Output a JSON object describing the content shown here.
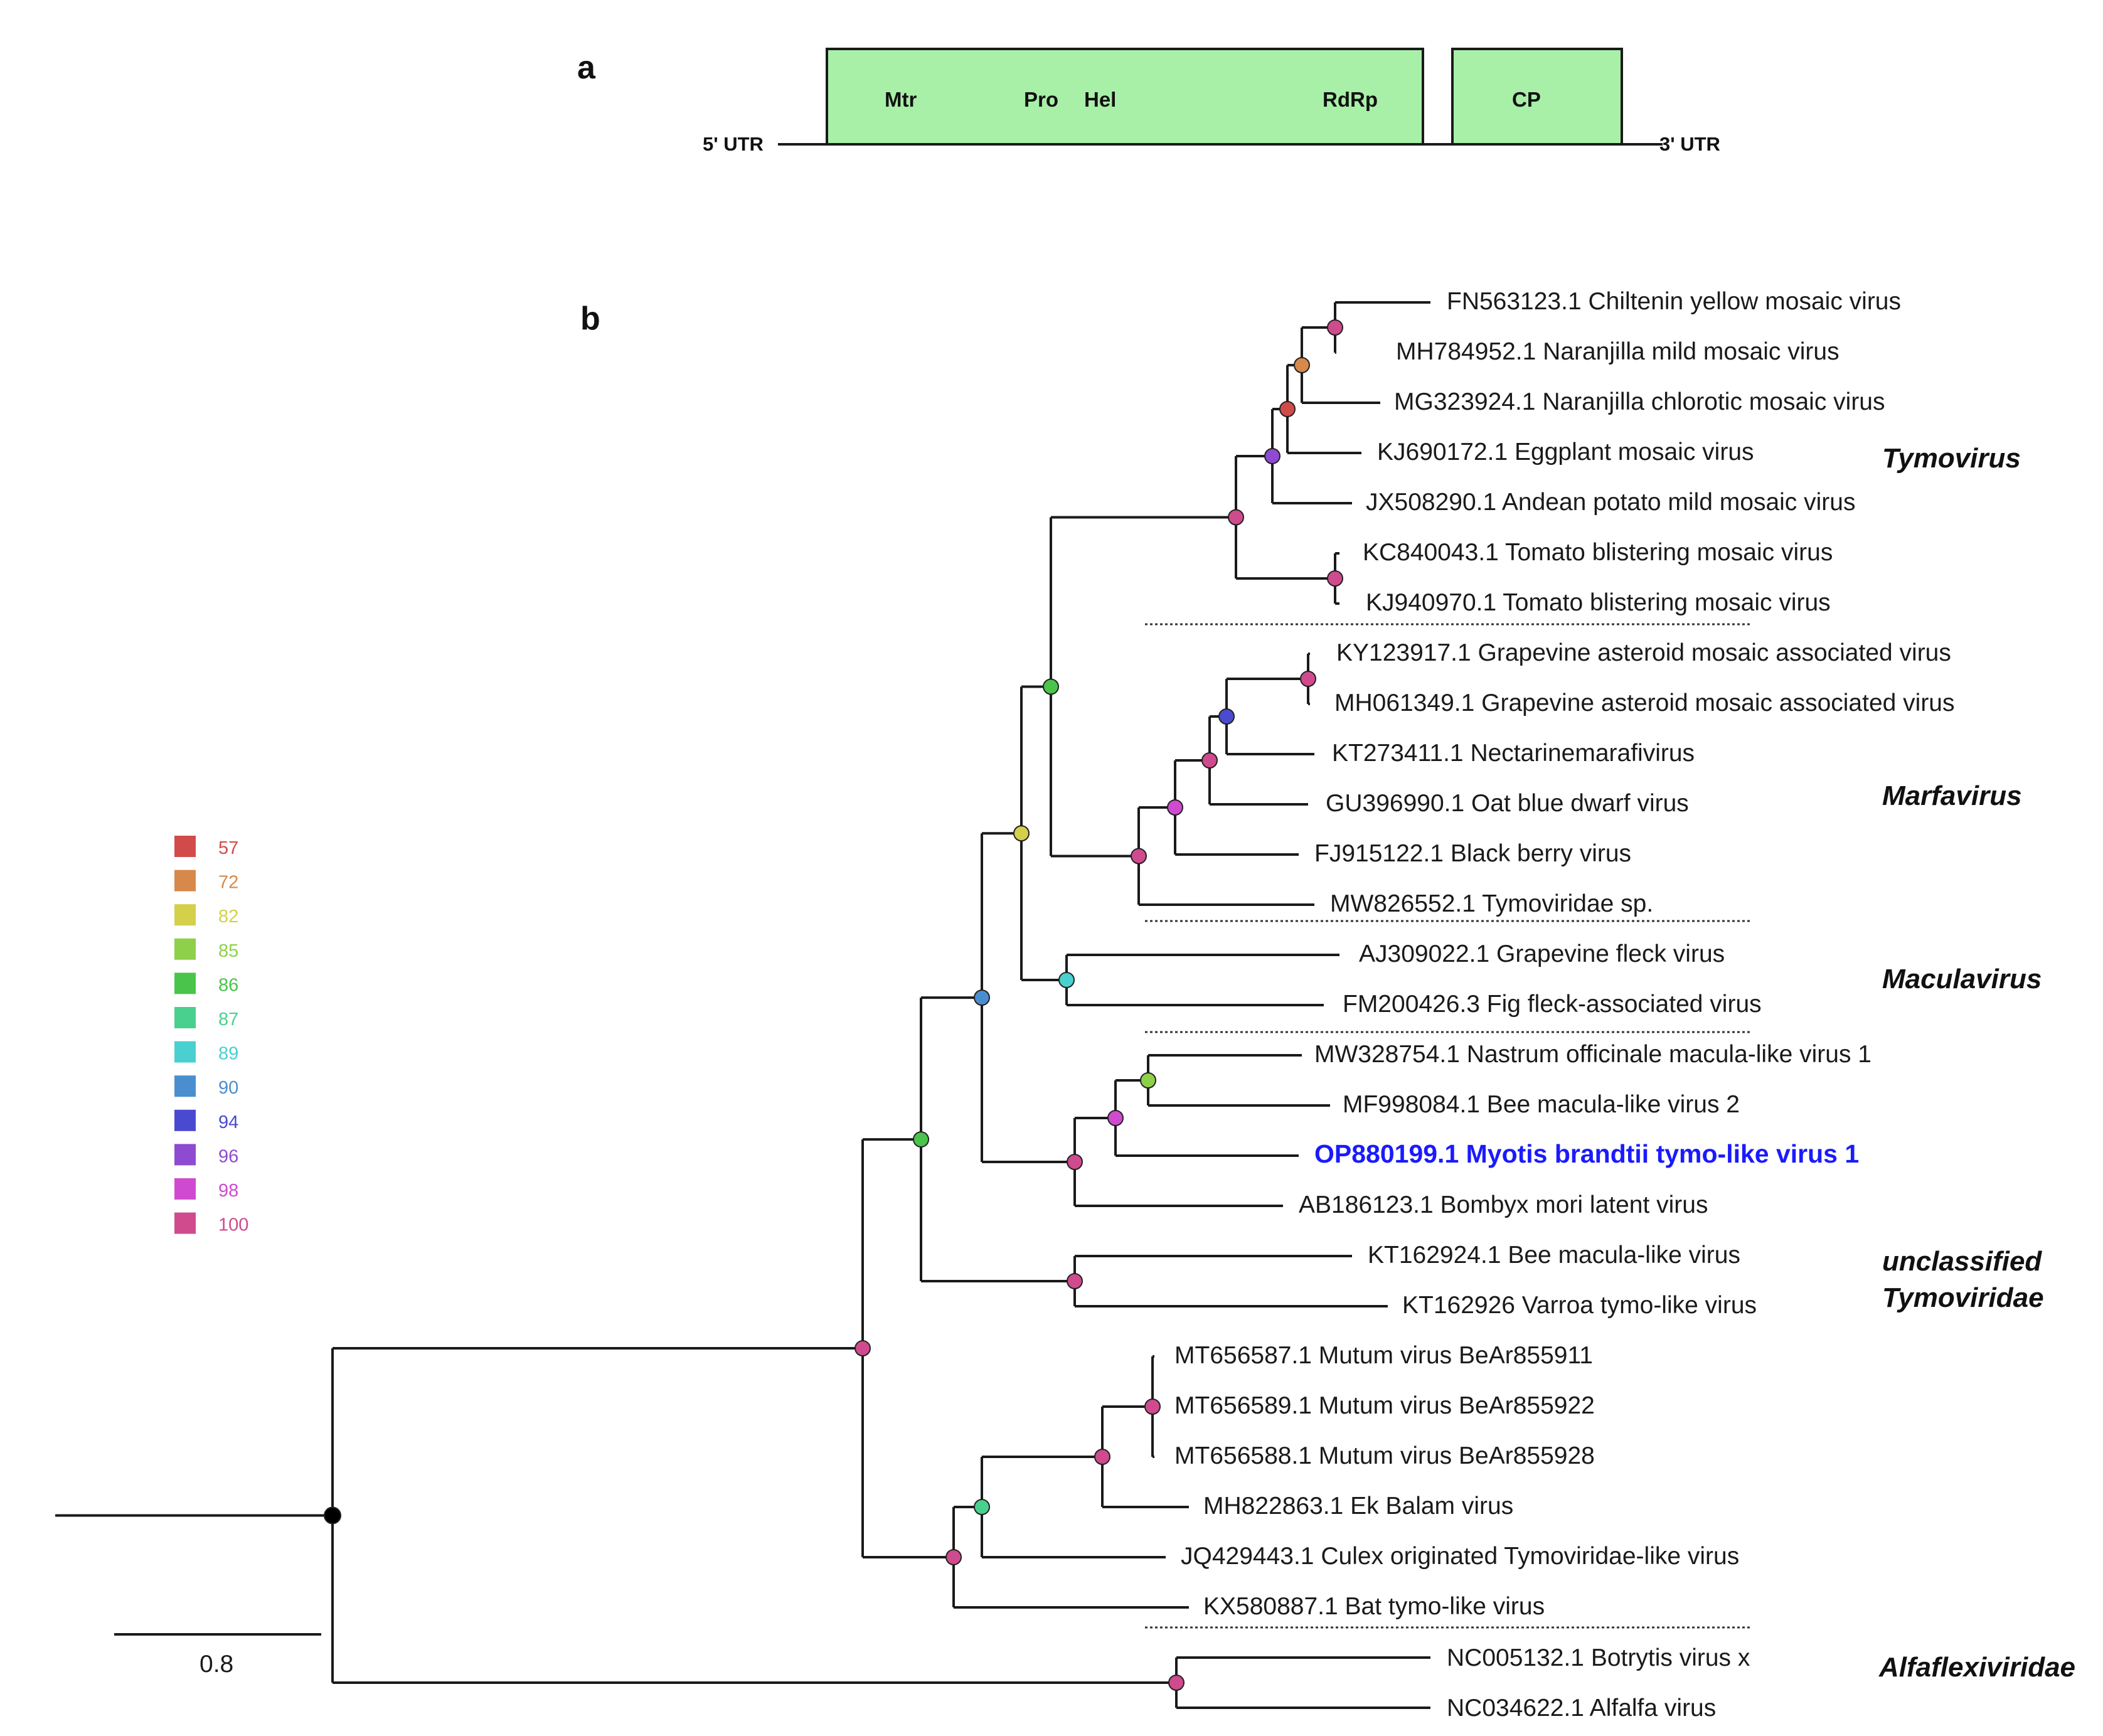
{
  "panel_a": {
    "label": "a",
    "utr5": "5' UTR",
    "utr3": "3' UTR",
    "domains": [
      "Mtr",
      "Pro",
      "Hel",
      "RdRp",
      "CP"
    ],
    "box_color": "#a8f0a8"
  },
  "panel_b": {
    "label": "b",
    "scale_label": "0.8",
    "leaves": [
      "FN563123.1 Chiltenin yellow mosaic virus",
      "MH784952.1 Naranjilla mild mosaic virus",
      "MG323924.1 Naranjilla chlorotic mosaic virus",
      "KJ690172.1 Eggplant mosaic virus",
      "JX508290.1 Andean potato mild mosaic virus",
      "KC840043.1 Tomato blistering mosaic virus",
      "KJ940970.1 Tomato blistering mosaic virus",
      "KY123917.1 Grapevine asteroid mosaic associated virus",
      "MH061349.1 Grapevine asteroid mosaic associated virus",
      "KT273411.1 Nectarinemarafivirus",
      "GU396990.1 Oat blue dwarf virus",
      "FJ915122.1 Black berry virus",
      "MW826552.1 Tymoviridae sp.",
      "AJ309022.1 Grapevine fleck virus",
      "FM200426.3 Fig fleck-associated virus",
      "MW328754.1 Nastrum officinale macula-like virus 1",
      "MF998084.1  Bee macula-like virus 2",
      "OP880199.1 Myotis brandtii tymo-like virus 1",
      "AB186123.1 Bombyx mori latent virus",
      "KT162924.1 Bee macula-like virus",
      "KT162926 Varroa tymo-like virus",
      "MT656587.1 Mutum virus BeAr855911",
      "MT656589.1 Mutum virus BeAr855922",
      "MT656588.1 Mutum virus BeAr855928",
      "MH822863.1 Ek Balam virus",
      "JQ429443.1 Culex originated Tymoviridae-like virus",
      "KX580887.1 Bat tymo-like virus",
      "NC005132.1 Botrytis virus x",
      "NC034622.1 Alfalfa virus"
    ],
    "highlight_color": "#1a1aff",
    "clades": {
      "tymovirus": "Tymovirus",
      "marfavirus": "Marfavirus",
      "maculavirus": "Maculavirus",
      "unclassified_1": "unclassified",
      "unclassified_2": "Tymoviridae",
      "alfaflexiviridae": "Alfaflexiviridae"
    },
    "legend": [
      {
        "value": "57",
        "color": "#d24b4b"
      },
      {
        "value": "72",
        "color": "#d6894a"
      },
      {
        "value": "82",
        "color": "#d4d04a"
      },
      {
        "value": "85",
        "color": "#8ed04a"
      },
      {
        "value": "86",
        "color": "#4ac44a"
      },
      {
        "value": "87",
        "color": "#4ad08e"
      },
      {
        "value": "89",
        "color": "#4ad0d0"
      },
      {
        "value": "90",
        "color": "#4a8ed0"
      },
      {
        "value": "94",
        "color": "#4a4ad0"
      },
      {
        "value": "96",
        "color": "#8e4ad0"
      },
      {
        "value": "98",
        "color": "#d04ad0"
      },
      {
        "value": "100",
        "color": "#d04a8e"
      }
    ]
  }
}
